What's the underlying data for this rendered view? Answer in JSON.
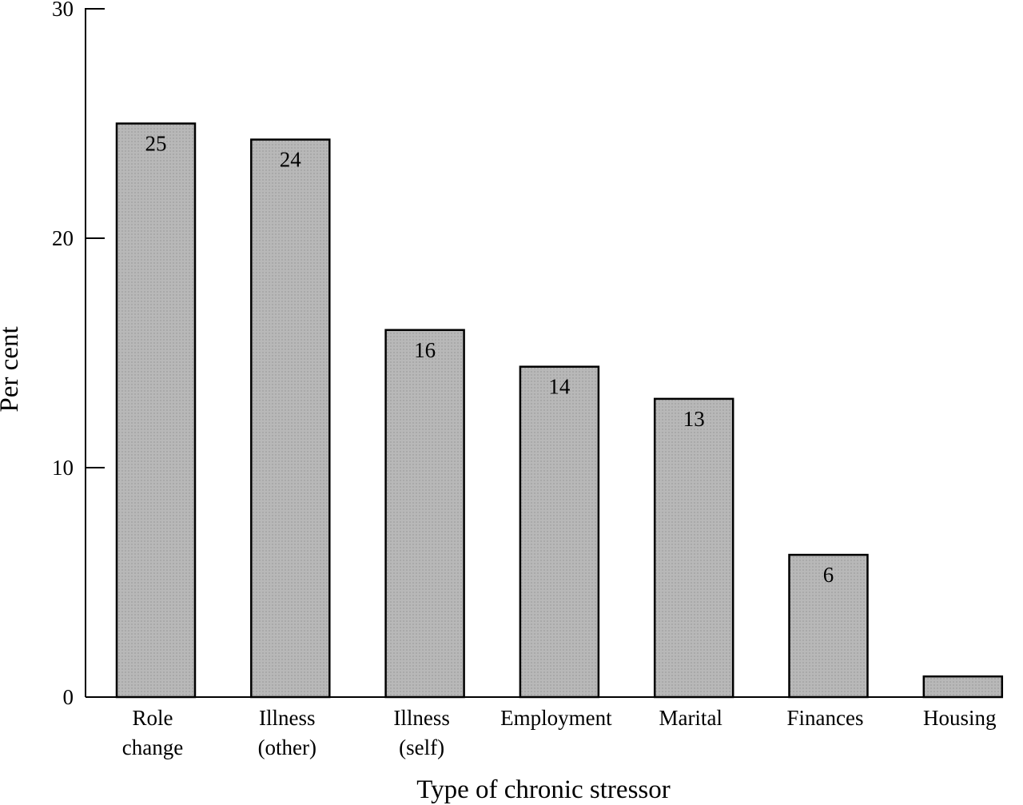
{
  "chart_data": {
    "type": "bar",
    "title": "",
    "xlabel": "Type of chronic stressor",
    "ylabel": "Per cent",
    "ylim": [
      0,
      30
    ],
    "yticks": [
      0,
      10,
      20,
      30
    ],
    "grid": false,
    "legend": "none",
    "bar_color": "#b4b4b4",
    "bar_border_color": "#000000",
    "categories": [
      [
        "Role",
        "change"
      ],
      [
        "Illness",
        "(other)"
      ],
      [
        "Illness",
        "(self)"
      ],
      [
        "Employment"
      ],
      [
        "Marital"
      ],
      [
        "Finances"
      ],
      [
        "Housing"
      ]
    ],
    "values": [
      25,
      24.3,
      16,
      14.4,
      13,
      6.2,
      0.9
    ],
    "data_labels": [
      "25",
      "24",
      "16",
      "14",
      "13",
      "6",
      ""
    ]
  }
}
